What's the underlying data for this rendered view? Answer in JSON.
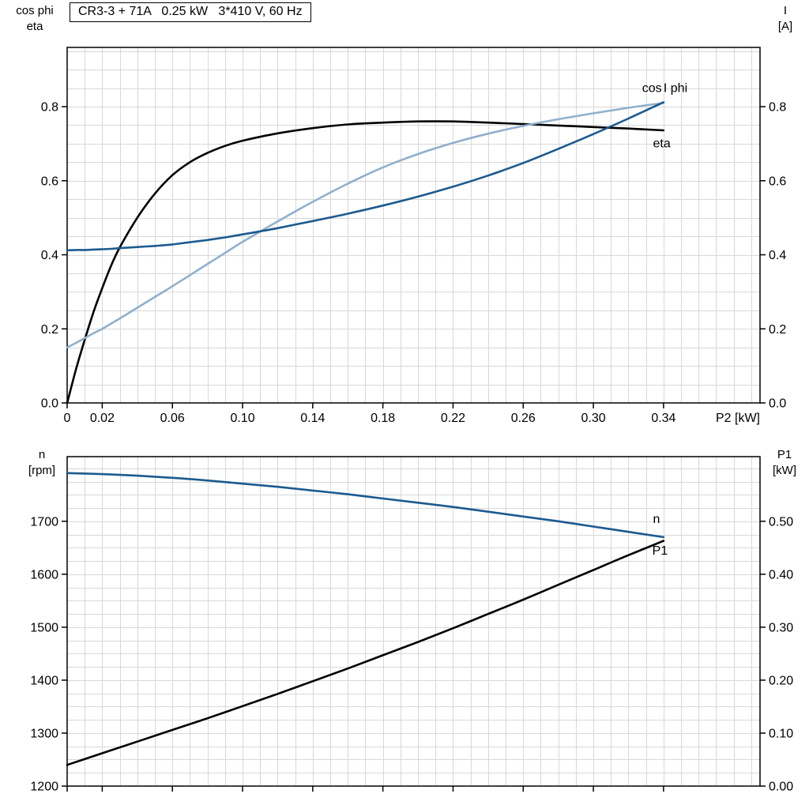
{
  "title": "CR3-3 + 71A   0.25 kW   3*410 V, 60 Hz",
  "colors": {
    "black": "#000000",
    "dark_blue": "#1c5a8f",
    "light_blue": "#8fb0cd",
    "grid": "#d8d8d8",
    "frame": "#000000",
    "background": "#ffffff"
  },
  "chart_data": [
    {
      "type": "line",
      "title": "CR3-3 + 71A   0.25 kW   3*410 V, 60 Hz",
      "grid": true,
      "legend_position": "inline-labels",
      "x_axis": {
        "label": "P2 [kW]",
        "min": 0,
        "max": 0.395,
        "grid_step": 0.01,
        "show_labels": true,
        "ticks": [
          {
            "v": 0,
            "label": "0"
          },
          {
            "v": 0.02,
            "label": "0.02"
          },
          {
            "v": 0.06,
            "label": "0.06"
          },
          {
            "v": 0.1,
            "label": "0.10"
          },
          {
            "v": 0.14,
            "label": "0.14"
          },
          {
            "v": 0.18,
            "label": "0.18"
          },
          {
            "v": 0.22,
            "label": "0.22"
          },
          {
            "v": 0.26,
            "label": "0.26"
          },
          {
            "v": 0.3,
            "label": "0.30"
          },
          {
            "v": 0.34,
            "label": "0.34"
          }
        ]
      },
      "left_axis": {
        "label_lines": [
          "cos phi",
          "eta"
        ],
        "min": 0,
        "max": 0.96,
        "grid_step": 0.05,
        "ticks": [
          {
            "v": 0,
            "label": "0.0"
          },
          {
            "v": 0.2,
            "label": "0.2"
          },
          {
            "v": 0.4,
            "label": "0.4"
          },
          {
            "v": 0.6,
            "label": "0.6"
          },
          {
            "v": 0.8,
            "label": "0.8"
          }
        ]
      },
      "right_axis": {
        "label_lines": [
          "I",
          "[A]"
        ],
        "min": 0,
        "max": 0.96,
        "ticks": [
          {
            "v": 0,
            "label": "0.0"
          },
          {
            "v": 0.2,
            "label": "0.2"
          },
          {
            "v": 0.4,
            "label": "0.4"
          },
          {
            "v": 0.6,
            "label": "0.6"
          },
          {
            "v": 0.8,
            "label": "0.8"
          }
        ]
      },
      "x": [
        0,
        0.005,
        0.01,
        0.015,
        0.02,
        0.025,
        0.03,
        0.04,
        0.05,
        0.06,
        0.07,
        0.08,
        0.09,
        0.1,
        0.12,
        0.14,
        0.16,
        0.18,
        0.2,
        0.22,
        0.24,
        0.26,
        0.28,
        0.3,
        0.32,
        0.34
      ],
      "series": [
        {
          "name": "eta",
          "axis": "left",
          "color_key": "black",
          "values": [
            0,
            0.09,
            0.17,
            0.245,
            0.31,
            0.37,
            0.42,
            0.5,
            0.565,
            0.615,
            0.65,
            0.675,
            0.694,
            0.708,
            0.728,
            0.742,
            0.752,
            0.757,
            0.76,
            0.76,
            0.757,
            0.753,
            0.749,
            0.745,
            0.741,
            0.736
          ]
        },
        {
          "name": "cos phi",
          "axis": "left",
          "color_key": "light_blue",
          "values": [
            0.15,
            0.162,
            0.175,
            0.188,
            0.2,
            0.214,
            0.228,
            0.257,
            0.286,
            0.315,
            0.345,
            0.375,
            0.405,
            0.435,
            0.49,
            0.543,
            0.592,
            0.636,
            0.672,
            0.702,
            0.727,
            0.748,
            0.766,
            0.782,
            0.797,
            0.81
          ]
        },
        {
          "name": "I",
          "axis": "left",
          "color_key": "dark_blue",
          "values": [
            0.412,
            0.413,
            0.413,
            0.414,
            0.415,
            0.416,
            0.418,
            0.421,
            0.424,
            0.428,
            0.434,
            0.44,
            0.447,
            0.455,
            0.472,
            0.491,
            0.511,
            0.533,
            0.557,
            0.584,
            0.614,
            0.648,
            0.686,
            0.726,
            0.768,
            0.812
          ]
        }
      ],
      "annotations": [
        {
          "text": "cos",
          "color_key": "light_blue",
          "x": 0.339,
          "y": 0.84,
          "anchor": "end"
        },
        {
          "text": "I",
          "color_key": "dark_blue",
          "x": 0.341,
          "y": 0.84,
          "anchor": "middle"
        },
        {
          "text": "phi",
          "color_key": "light_blue",
          "x": 0.344,
          "y": 0.84,
          "anchor": "start"
        },
        {
          "text": "eta",
          "color_key": "black",
          "x": 0.339,
          "y": 0.69,
          "anchor": "middle"
        }
      ]
    },
    {
      "type": "line",
      "title": "",
      "grid": true,
      "legend_position": "inline-labels",
      "x_axis": {
        "label": "",
        "min": 0,
        "max": 0.395,
        "grid_step": 0.01,
        "show_labels": false,
        "ticks": [
          {
            "v": 0,
            "label": ""
          },
          {
            "v": 0.02,
            "label": ""
          },
          {
            "v": 0.06,
            "label": ""
          },
          {
            "v": 0.1,
            "label": ""
          },
          {
            "v": 0.14,
            "label": ""
          },
          {
            "v": 0.18,
            "label": ""
          },
          {
            "v": 0.22,
            "label": ""
          },
          {
            "v": 0.26,
            "label": ""
          },
          {
            "v": 0.3,
            "label": ""
          },
          {
            "v": 0.34,
            "label": ""
          }
        ]
      },
      "left_axis": {
        "label_lines": [
          "n",
          "[rpm]"
        ],
        "min": 1200,
        "max": 1822,
        "grid_step": 25,
        "ticks": [
          {
            "v": 1200,
            "label": "1200"
          },
          {
            "v": 1300,
            "label": "1300"
          },
          {
            "v": 1400,
            "label": "1400"
          },
          {
            "v": 1500,
            "label": "1500"
          },
          {
            "v": 1600,
            "label": "1600"
          },
          {
            "v": 1700,
            "label": "1700"
          }
        ]
      },
      "right_axis": {
        "label_lines": [
          "P1",
          "[kW]"
        ],
        "min": 0,
        "max": 0.622,
        "ticks": [
          {
            "v": 0,
            "label": "0.00"
          },
          {
            "v": 0.1,
            "label": "0.10"
          },
          {
            "v": 0.2,
            "label": "0.20"
          },
          {
            "v": 0.3,
            "label": "0.30"
          },
          {
            "v": 0.4,
            "label": "0.40"
          },
          {
            "v": 0.5,
            "label": "0.50"
          }
        ]
      },
      "x": [
        0,
        0.02,
        0.04,
        0.06,
        0.08,
        0.1,
        0.12,
        0.14,
        0.16,
        0.18,
        0.2,
        0.22,
        0.24,
        0.26,
        0.28,
        0.3,
        0.32,
        0.34
      ],
      "series": [
        {
          "name": "n",
          "axis": "left",
          "color_key": "dark_blue",
          "values": [
            1791,
            1789,
            1786,
            1782,
            1777,
            1771,
            1765,
            1758,
            1751,
            1743,
            1735,
            1727,
            1718,
            1709,
            1700,
            1690,
            1680,
            1670
          ]
        },
        {
          "name": "P1",
          "axis": "right",
          "color_key": "black",
          "values": [
            0.04,
            0.062,
            0.084,
            0.106,
            0.128,
            0.151,
            0.174,
            0.198,
            0.222,
            0.247,
            0.272,
            0.298,
            0.325,
            0.352,
            0.38,
            0.408,
            0.436,
            0.463
          ]
        }
      ],
      "annotations": [
        {
          "text": "n",
          "color_key": "dark_blue",
          "x": 0.336,
          "y": 1697,
          "anchor": "middle"
        },
        {
          "text": "P1",
          "color_key": "black",
          "x": 0.338,
          "y": 1637,
          "anchor": "middle"
        }
      ]
    }
  ]
}
